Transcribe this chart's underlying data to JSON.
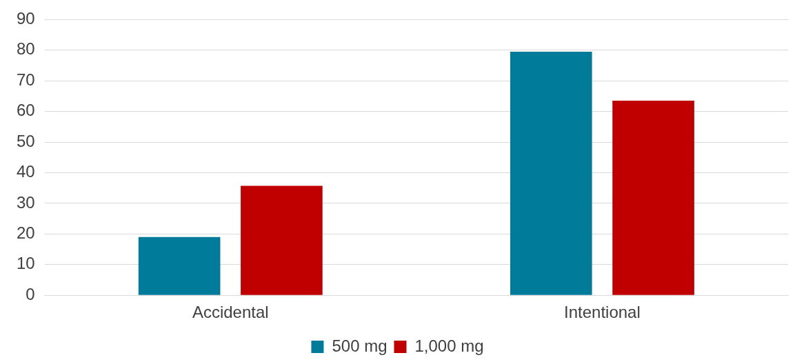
{
  "chart_data": {
    "type": "bar",
    "categories": [
      "Accidental",
      "Intentional"
    ],
    "series": [
      {
        "name": "500 mg",
        "color": "#007b99",
        "values": [
          19,
          79.5
        ]
      },
      {
        "name": "1,000 mg",
        "color": "#c00000",
        "values": [
          35.7,
          63.5
        ]
      }
    ],
    "ylim": [
      0,
      90
    ],
    "yticks": [
      0,
      10,
      20,
      30,
      40,
      50,
      60,
      70,
      80,
      90
    ],
    "grid": "y",
    "legend": "bottom"
  }
}
